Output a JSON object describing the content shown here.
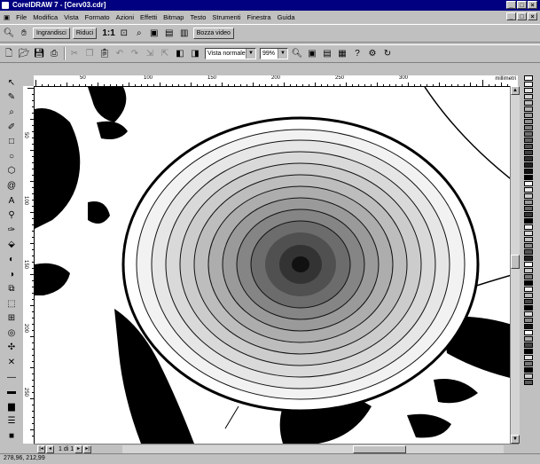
{
  "window": {
    "title": "CorelDRAW 7 - [Cerv03.cdr]",
    "minimize": "_",
    "maximize": "□",
    "close": "×"
  },
  "menu": [
    "File",
    "Modifica",
    "Vista",
    "Formato",
    "Azioni",
    "Effetti",
    "Bitmap",
    "Testo",
    "Strumenti",
    "Finestra",
    "Guida"
  ],
  "toolbar1": {
    "ingrandisci": "Ingrandisci",
    "riduci": "Riduci",
    "zoom_one": "1:1",
    "tutto_video": "Bozza video"
  },
  "toolbar2": {
    "view_mode": "Vista normale",
    "zoom_level": "99%"
  },
  "ruler": {
    "units": "millimetri",
    "h_labels": [
      "50",
      "100",
      "150",
      "200",
      "250",
      "300"
    ],
    "v_labels": [
      "50",
      "100",
      "150",
      "200",
      "250"
    ]
  },
  "page_nav": {
    "label": "1 di 1"
  },
  "status": {
    "coords": "278,96, 212,99"
  },
  "colors": {
    "titlebar": "#000080",
    "face": "#c0c0c0"
  },
  "palette": [
    "#ffffff",
    "#f0f0f0",
    "#e0e0e0",
    "#d0d0d0",
    "#c0c0c0",
    "#b0b0b0",
    "#a0a0a0",
    "#909090",
    "#808080",
    "#707070",
    "#606060",
    "#505050",
    "#404040",
    "#303030",
    "#202020",
    "#101010",
    "#000000",
    "#ffffff",
    "#e8e8e8",
    "#cccccc",
    "#999999",
    "#666666",
    "#333333",
    "#000000",
    "#f4f4f4",
    "#dadada",
    "#bdbdbd",
    "#8a8a8a",
    "#555555",
    "#222222",
    "#ffffff",
    "#c8c8c8",
    "#7a7a7a",
    "#000000",
    "#eeeeee",
    "#b8b8b8",
    "#484848",
    "#000000",
    "#dddddd",
    "#888888",
    "#111111",
    "#ffffff",
    "#aaaaaa",
    "#444444",
    "#000000",
    "#e0e0e0",
    "#777777",
    "#000000",
    "#cfcfcf",
    "#5a5a5a"
  ]
}
